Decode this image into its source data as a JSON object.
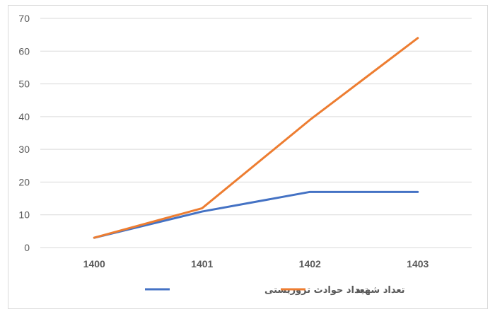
{
  "chart_data": {
    "type": "line",
    "categories": [
      "1400",
      "1401",
      "1402",
      "1403"
    ],
    "ylim": [
      0,
      70
    ],
    "yticks": [
      "0",
      "10",
      "20",
      "30",
      "40",
      "50",
      "60",
      "70"
    ],
    "grid": true,
    "legend_position": "bottom",
    "series": [
      {
        "name": "تعداد حوادث تروریستی",
        "color": "#4472c4",
        "values": [
          3,
          11,
          17,
          17
        ]
      },
      {
        "name": "تعداد شهید",
        "color": "#ed7d31",
        "values": [
          3,
          12,
          39,
          64
        ]
      }
    ]
  }
}
